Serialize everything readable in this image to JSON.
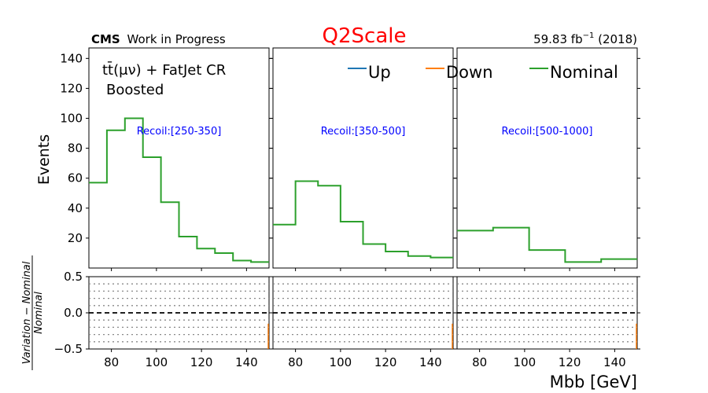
{
  "header": {
    "cms": "CMS",
    "work": "Work in Progress",
    "title": "Q2Scale",
    "lumi_prefix": "59.83 fb",
    "lumi_exp": "−1",
    "lumi_suffix": " (2018)"
  },
  "annotation": {
    "region_line1": "tt̄(μν) + FatJet CR",
    "region_line2": "Boosted"
  },
  "legend": [
    {
      "label": "Up",
      "color": "#1f77b4"
    },
    {
      "label": "Down",
      "color": "#ff7f0e"
    },
    {
      "label": "Nominal",
      "color": "#2ca02c"
    }
  ],
  "axes": {
    "ylabel_top": "Events",
    "ylabel_bottom_num": "Variation − Nominal",
    "ylabel_bottom_den": "Nominal",
    "xlabel": "Mbb [GeV]"
  },
  "chart_data": {
    "type": "step",
    "xlim": [
      70,
      150
    ],
    "ylim_top": [
      0,
      147
    ],
    "ylim_ratio": [
      -0.5,
      0.5
    ],
    "x_ticks": [
      80,
      100,
      120,
      140
    ],
    "y_ticks_top": [
      20,
      40,
      60,
      80,
      100,
      120,
      140
    ],
    "y_ticks_ratio": [
      -0.5,
      0.0,
      0.5
    ],
    "y_tick_labels_ratio": [
      "−0.5",
      "0.0",
      "0.5"
    ],
    "ratio_gridlines": [
      -0.4,
      -0.3,
      -0.2,
      -0.1,
      0.1,
      0.2,
      0.3,
      0.4
    ],
    "panels": [
      {
        "label": "Recoil:[250-350]",
        "edges": [
          70,
          78,
          86,
          94,
          102,
          110,
          118,
          126,
          134,
          142,
          150
        ],
        "nominal": [
          57,
          92,
          100,
          74,
          44,
          21,
          13,
          10,
          5,
          4
        ]
      },
      {
        "label": "Recoil:[350-500]",
        "edges": [
          70,
          80,
          90,
          100,
          110,
          120,
          130,
          140,
          150
        ],
        "nominal": [
          29,
          58,
          55,
          31,
          16,
          11,
          8,
          7
        ]
      },
      {
        "label": "Recoil:[500-1000]",
        "edges": [
          70,
          86,
          102,
          118,
          134,
          150
        ],
        "nominal": [
          25,
          27,
          12,
          4,
          6
        ]
      }
    ]
  }
}
